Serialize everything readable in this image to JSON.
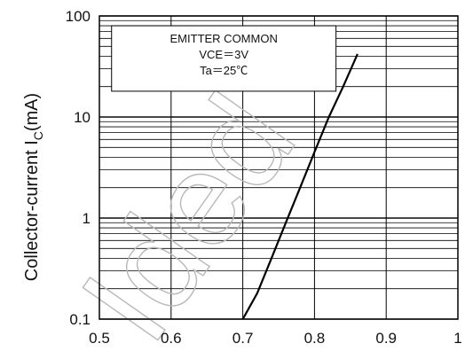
{
  "chart_data": {
    "type": "line",
    "title": "",
    "xlabel": "",
    "ylabel": "Collector-current I",
    "ylabel_sub": "C",
    "ylabel_unit": "(mA)",
    "xscale": "linear",
    "yscale": "log",
    "xlim": [
      0.5,
      1.0
    ],
    "ylim": [
      0.1,
      100
    ],
    "x_ticks": [
      "0.5",
      "0.6",
      "0.7",
      "0.8",
      "0.9",
      "1"
    ],
    "y_ticks": [
      "0.1",
      "1",
      "10",
      "100"
    ],
    "grid": true,
    "legend": "none",
    "annotation": [
      "EMITTER  COMMON",
      "VCE＝3V",
      "Ta＝25℃"
    ],
    "watermark": "Ided",
    "series": [
      {
        "name": "",
        "color": "#000000",
        "points": [
          [
            0.7,
            0.1
          ],
          [
            0.72,
            0.18
          ],
          [
            0.74,
            0.4
          ],
          [
            0.76,
            0.9
          ],
          [
            0.78,
            2.0
          ],
          [
            0.8,
            4.5
          ],
          [
            0.82,
            10
          ],
          [
            0.84,
            20
          ],
          [
            0.86,
            42
          ]
        ]
      }
    ]
  }
}
